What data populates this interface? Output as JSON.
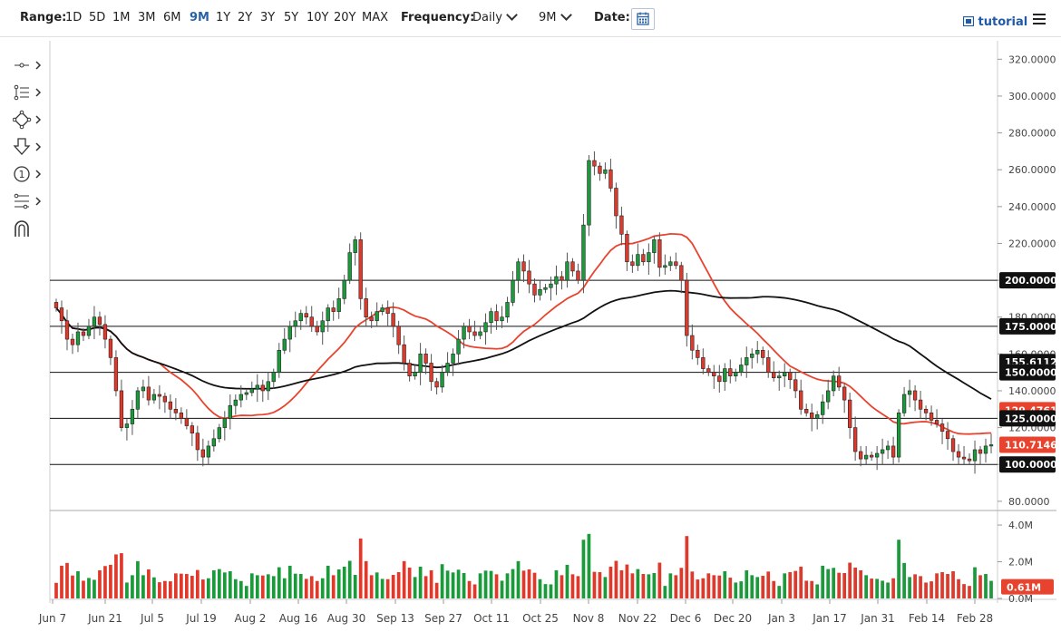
{
  "toolbar": {
    "range_label": "Range:",
    "ranges": [
      "1D",
      "5D",
      "1M",
      "3M",
      "6M",
      "9M",
      "1Y",
      "2Y",
      "3Y",
      "5Y",
      "10Y",
      "20Y",
      "MAX"
    ],
    "active_range": "9M",
    "frequency_label": "Frequency:",
    "frequency_value": "Daily",
    "period_value": "9M",
    "date_label": "Date:",
    "tutorial_label": "tutorial"
  },
  "tools": [
    "crosshair-icon",
    "trend-lines-icon",
    "shapes-icon",
    "arrow-down-icon",
    "annotation-icon",
    "fibonacci-icon",
    "magnet-icon"
  ],
  "chart_data": {
    "type": "candlestick",
    "y_axis": {
      "ticks": [
        "80.0000",
        "100.0000",
        "120.0000",
        "140.0000",
        "160.0000",
        "180.0000",
        "200.0000",
        "220.0000",
        "240.0000",
        "260.0000",
        "280.0000",
        "300.0000",
        "320.0000"
      ],
      "range": [
        75,
        330
      ]
    },
    "x_ticks": [
      "Jun 7",
      "Jun 21",
      "Jul 5",
      "Jul 19",
      "Aug 2",
      "Aug 16",
      "Aug 30",
      "Sep 13",
      "Sep 27",
      "Oct 11",
      "Oct 25",
      "Nov 8",
      "Nov 22",
      "Dec 6",
      "Dec 20",
      "Jan 3",
      "Jan 17",
      "Jan 31",
      "Feb 14",
      "Feb 28"
    ],
    "horizontal_levels": [
      200,
      175,
      150,
      125,
      100
    ],
    "labels": [
      {
        "value": 200,
        "text": "200.0000",
        "kind": "level"
      },
      {
        "value": 175,
        "text": "175.0000",
        "kind": "level"
      },
      {
        "value": 155.6112,
        "text": "155.6112",
        "kind": "ma_black"
      },
      {
        "value": 150,
        "text": "150.0000",
        "kind": "level"
      },
      {
        "value": 129.4761,
        "text": "129.4761",
        "kind": "ma_red"
      },
      {
        "value": 125,
        "text": "125.0000",
        "kind": "level"
      },
      {
        "value": 110.7146,
        "text": "110.7146",
        "kind": "price"
      },
      {
        "value": 100,
        "text": "100.0000",
        "kind": "level"
      }
    ],
    "closes": [
      185,
      178,
      168,
      165,
      172,
      170,
      175,
      180,
      176,
      168,
      158,
      140,
      120,
      122,
      130,
      140,
      142,
      135,
      138,
      137,
      134,
      130,
      128,
      125,
      121,
      117,
      108,
      104,
      110,
      114,
      120,
      125,
      132,
      135,
      138,
      139,
      141,
      143,
      140,
      145,
      150,
      162,
      168,
      175,
      178,
      182,
      180,
      175,
      172,
      178,
      185,
      183,
      190,
      200,
      215,
      222,
      190,
      180,
      178,
      183,
      185,
      182,
      175,
      165,
      155,
      148,
      150,
      160,
      155,
      145,
      142,
      150,
      155,
      160,
      168,
      175,
      172,
      170,
      172,
      177,
      183,
      178,
      180,
      188,
      200,
      210,
      205,
      198,
      192,
      195,
      196,
      198,
      202,
      200,
      210,
      205,
      200,
      230,
      265,
      262,
      258,
      260,
      250,
      235,
      225,
      210,
      208,
      214,
      210,
      215,
      222,
      207,
      208,
      210,
      208,
      200,
      170,
      162,
      158,
      152,
      150,
      148,
      145,
      152,
      148,
      150,
      154,
      158,
      160,
      162,
      158,
      150,
      147,
      148,
      150,
      146,
      140,
      130,
      128,
      125,
      127,
      134,
      140,
      148,
      142,
      135,
      120,
      107,
      103,
      105,
      104,
      106,
      108,
      110,
      104,
      128,
      138,
      140,
      135,
      130,
      128,
      124,
      122,
      118,
      114,
      107,
      104,
      103,
      102,
      108,
      106,
      110,
      110.71
    ],
    "volume_axis": {
      "ticks": [
        "4.0M",
        "2.0M",
        "0.0M"
      ],
      "range": [
        0,
        4.2
      ],
      "last_label": "0.61M"
    },
    "colors": {
      "up": "#1a9a3a",
      "down": "#e0392b",
      "ma_red": "#e8432e",
      "ma_black": "#111111",
      "label_bg": "#111111",
      "red_label_bg": "#e8432e"
    }
  }
}
